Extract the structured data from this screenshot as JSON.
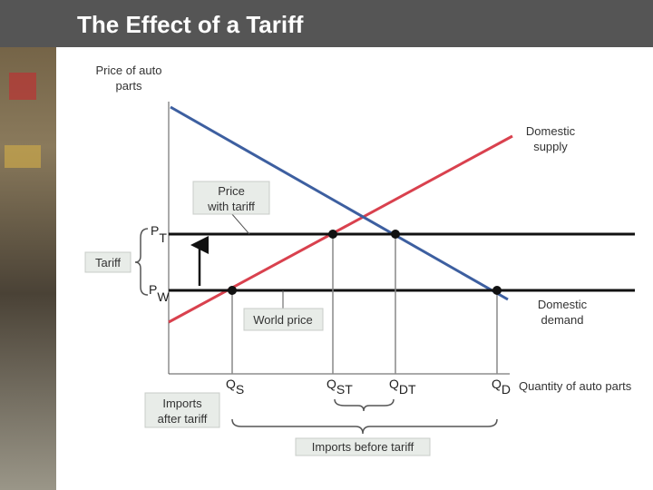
{
  "header": {
    "title": "The Effect of a Tariff"
  },
  "axes": {
    "y_label": [
      "Price of auto",
      "parts"
    ],
    "x_label": "Quantity of auto parts"
  },
  "curves": {
    "supply": [
      "Domestic",
      "supply"
    ],
    "demand": [
      "Domestic",
      "demand"
    ]
  },
  "prices": {
    "tariff_price": {
      "main": "P",
      "sub": "T"
    },
    "world_price": {
      "main": "P",
      "sub": "W"
    }
  },
  "quantities": [
    {
      "main": "Q",
      "sub": "S"
    },
    {
      "main": "Q",
      "sub": "ST"
    },
    {
      "main": "Q",
      "sub": "DT"
    },
    {
      "main": "Q",
      "sub": "D"
    }
  ],
  "callouts": {
    "price_with_tariff": [
      "Price",
      "with tariff"
    ],
    "tariff": "Tariff",
    "world_price": "World price",
    "imports_after_tariff": [
      "Imports",
      "after tariff"
    ],
    "imports_before_tariff": "Imports before tariff"
  }
}
